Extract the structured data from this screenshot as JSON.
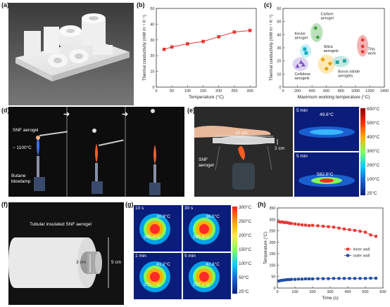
{
  "panel_labels": {
    "a": "(a)",
    "b": "(b)",
    "c": "(c)",
    "d": "(d)",
    "e": "(e)",
    "f": "(f)",
    "g": "(g)",
    "h": "(h)"
  },
  "panel_d": {
    "aerogel": "SNF aerogel",
    "temp": "~ 1100°C",
    "lamp": "Butane blowlamp",
    "arrow": "➔"
  },
  "panel_e": {
    "width_label": "10 cm",
    "height_label": "2 cm",
    "aerogel": "SNF aerogel",
    "ir": [
      {
        "time": "5 min",
        "temp": "49.6°C"
      },
      {
        "time": "5 min",
        "temp": "582.0°C"
      }
    ],
    "colorbar": [
      "600°C",
      "500°C",
      "400°C",
      "300°C",
      "200°C",
      "100°C",
      "25°C"
    ]
  },
  "panel_f": {
    "title": "Tubular insulated SNF aerogel",
    "inner": "3 cm",
    "outer": "5 cm"
  },
  "panel_g": {
    "frames": [
      {
        "time": "10 s",
        "outer": "30.9°C",
        "inner": "285.4°C"
      },
      {
        "time": "30 s",
        "outer": "36.0°C",
        "inner": "283.9°C"
      },
      {
        "time": "1 min",
        "outer": "41.2°C",
        "inner": "271.7°C"
      },
      {
        "time": "5 min",
        "outer": "42.3°C",
        "inner": "257.1°C"
      }
    ],
    "colorbar": [
      "300°C",
      "250°C",
      "200°C",
      "150°C",
      "100°C",
      "50°C",
      "25°C"
    ]
  },
  "chart_data": [
    {
      "id": "b",
      "type": "line",
      "xlabel": "Temperature (°C)",
      "ylabel": "Thermal conductivity (mW m⁻¹ K⁻¹)",
      "xlim": [
        0,
        320
      ],
      "ylim": [
        0,
        50
      ],
      "xticks": [
        0,
        50,
        100,
        150,
        200,
        250,
        300
      ],
      "yticks": [
        0,
        10,
        20,
        30,
        40,
        50
      ],
      "x": [
        25,
        50,
        100,
        150,
        200,
        250,
        300
      ],
      "y": [
        24,
        25.5,
        27.5,
        29,
        32,
        35,
        36
      ],
      "color": "#e53935"
    },
    {
      "id": "c",
      "type": "scatter",
      "xlabel": "Maximum working temperature (°C)",
      "ylabel": "Thermal conductivity (mW m⁻¹ K⁻¹)",
      "xlim": [
        0,
        1400
      ],
      "ylim": [
        0,
        60
      ],
      "xticks": [
        0,
        200,
        400,
        600,
        800,
        1000,
        1200,
        1400
      ],
      "yticks": [
        0,
        10,
        20,
        30,
        40,
        50,
        60
      ],
      "groups": [
        {
          "name": "Carbon aerogel",
          "color": "#43a047",
          "fill": "#a5d6a7",
          "marker": "circle",
          "points": [
            [
              450,
              45
            ],
            [
              480,
              38
            ]
          ]
        },
        {
          "name": "Kevlar aerogel",
          "color": "#00acc1",
          "fill": "#b2ebf2",
          "marker": "square",
          "points": [
            [
              300,
              29
            ],
            [
              320,
              26
            ]
          ]
        },
        {
          "name": "Silica aerogels",
          "color": "#e6a000",
          "fill": "#ffe0a0",
          "marker": "diamond",
          "points": [
            [
              550,
              21
            ],
            [
              600,
              14
            ],
            [
              650,
              18
            ]
          ]
        },
        {
          "name": "Cellulose aerogels",
          "color": "#7e57c2",
          "fill": "#d1c4e9",
          "marker": "triangle",
          "points": [
            [
              200,
              16
            ],
            [
              250,
              19
            ],
            [
              280,
              17
            ]
          ]
        },
        {
          "name": "Boron nitride aerogels",
          "color": "#26a69a",
          "fill": "#b2dfdb",
          "marker": "square",
          "points": [
            [
              750,
              19
            ],
            [
              850,
              20
            ]
          ]
        },
        {
          "name": "This work",
          "color": "#e53935",
          "fill": "#ef9a9a",
          "marker": "circle",
          "points": [
            [
              1100,
              36
            ],
            [
              1100,
              31
            ],
            [
              1100,
              27
            ]
          ]
        }
      ]
    },
    {
      "id": "h",
      "type": "line",
      "xlabel": "Time (s)",
      "ylabel": "Temperature (°C)",
      "xlim": [
        0,
        600
      ],
      "ylim": [
        0,
        350
      ],
      "xticks": [
        0,
        100,
        200,
        300,
        400,
        500,
        600
      ],
      "yticks": [
        0,
        50,
        100,
        150,
        200,
        250,
        300,
        350
      ],
      "series": [
        {
          "name": "Inner wall",
          "color": "#e53935",
          "marker": "square",
          "x": [
            10,
            20,
            30,
            40,
            50,
            60,
            70,
            80,
            100,
            120,
            140,
            160,
            180,
            200,
            230,
            260,
            290,
            320,
            350,
            380,
            410,
            440,
            470,
            500,
            530,
            560
          ],
          "y": [
            290,
            288,
            289,
            286,
            287,
            285,
            283,
            282,
            280,
            278,
            276,
            275,
            273,
            274,
            272,
            270,
            268,
            266,
            262,
            258,
            255,
            252,
            248,
            244,
            232,
            226
          ]
        },
        {
          "name": "outer wall",
          "color": "#1e4fa8",
          "marker": "square",
          "x": [
            10,
            20,
            30,
            40,
            50,
            60,
            70,
            80,
            100,
            120,
            140,
            160,
            180,
            200,
            230,
            260,
            290,
            320,
            350,
            380,
            410,
            440,
            470,
            500,
            530,
            560
          ],
          "y": [
            31,
            33,
            34,
            35,
            36,
            37,
            37,
            38,
            38,
            39,
            39,
            40,
            40,
            40,
            41,
            41,
            41,
            42,
            42,
            42,
            42,
            42,
            42,
            42,
            43,
            43
          ]
        }
      ]
    }
  ]
}
